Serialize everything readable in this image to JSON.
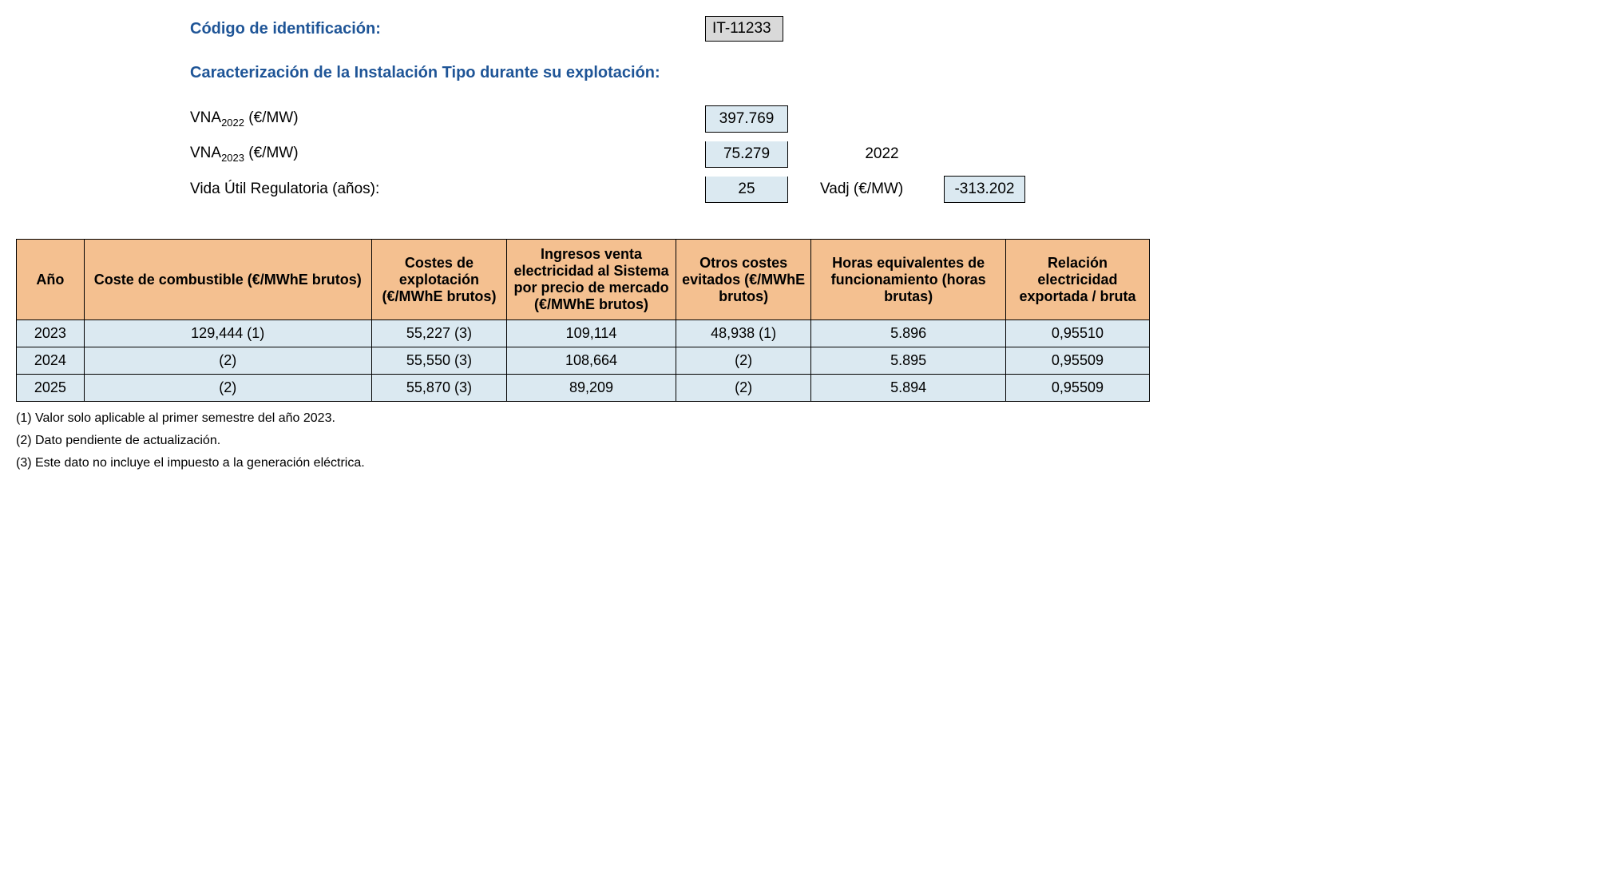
{
  "header": {
    "id_label": "Código de identificación:",
    "id_value": "IT-11233",
    "section_title": "Caracterización de la Instalación Tipo durante su explotación:"
  },
  "params": {
    "vna2022_label_prefix": "VNA",
    "vna2022_sub": "2022",
    "vna2022_unit": " (€/MW)",
    "vna2022_value": "397.769",
    "vna2023_label_prefix": "VNA",
    "vna2023_sub": "2023",
    "vna2023_unit": " (€/MW)",
    "vna2023_value": "75.279",
    "vida_label": "Vida Útil Regulatoria (años):",
    "vida_value": "25",
    "year_label": "2022",
    "vadj_label": "Vadj (€/MW)",
    "vadj_value": "-313.202"
  },
  "table": {
    "columns": [
      "Año",
      "Coste de combustible (€/MWhE brutos)",
      "Costes de explotación (€/MWhE brutos)",
      "Ingresos venta electricidad al Sistema por precio de mercado (€/MWhE brutos)",
      "Otros costes evitados (€/MWhE brutos)",
      "Horas equivalentes de funcionamiento (horas brutas)",
      "Relación electricidad exportada / bruta"
    ],
    "col_widths": [
      "80px",
      "340px",
      "160px",
      "200px",
      "160px",
      "230px",
      "170px"
    ],
    "rows": [
      [
        "2023",
        "129,444 (1)",
        "55,227 (3)",
        "109,114",
        "48,938 (1)",
        "5.896",
        "0,95510"
      ],
      [
        "2024",
        "(2)",
        "55,550 (3)",
        "108,664",
        "(2)",
        "5.895",
        "0,95509"
      ],
      [
        "2025",
        "(2)",
        "55,870 (3)",
        "89,209",
        "(2)",
        "5.894",
        "0,95509"
      ]
    ]
  },
  "footnotes": [
    "(1) Valor solo aplicable al primer semestre del año 2023.",
    "(2) Dato pendiente de actualización.",
    "(3) Este dato no incluye el impuesto a la generación eléctrica."
  ],
  "colors": {
    "header_bg": "#f4c090",
    "cell_bg": "#dbe9f1",
    "id_bg": "#d9d9d9",
    "title_color": "#1f5597"
  }
}
